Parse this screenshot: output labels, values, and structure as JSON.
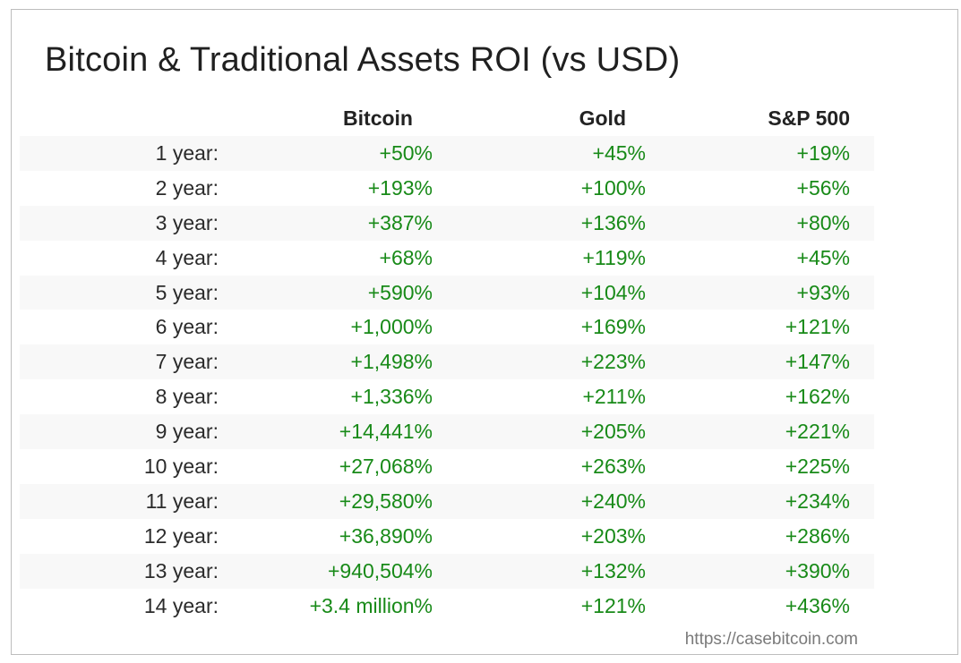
{
  "title": "Bitcoin & Traditional Assets ROI (vs USD)",
  "columns": [
    "Bitcoin",
    "Gold",
    "S&P 500"
  ],
  "rows": [
    {
      "period": "1 year:",
      "bitcoin": "+50%",
      "gold": "+45%",
      "sp500": "+19%"
    },
    {
      "period": "2 year:",
      "bitcoin": "+193%",
      "gold": "+100%",
      "sp500": "+56%"
    },
    {
      "period": "3 year:",
      "bitcoin": "+387%",
      "gold": "+136%",
      "sp500": "+80%"
    },
    {
      "period": "4 year:",
      "bitcoin": "+68%",
      "gold": "+119%",
      "sp500": "+45%"
    },
    {
      "period": "5 year:",
      "bitcoin": "+590%",
      "gold": "+104%",
      "sp500": "+93%"
    },
    {
      "period": "6 year:",
      "bitcoin": "+1,000%",
      "gold": "+169%",
      "sp500": "+121%"
    },
    {
      "period": "7 year:",
      "bitcoin": "+1,498%",
      "gold": "+223%",
      "sp500": "+147%"
    },
    {
      "period": "8 year:",
      "bitcoin": "+1,336%",
      "gold": "+211%",
      "sp500": "+162%"
    },
    {
      "period": "9 year:",
      "bitcoin": "+14,441%",
      "gold": "+205%",
      "sp500": "+221%"
    },
    {
      "period": "10 year:",
      "bitcoin": "+27,068%",
      "gold": "+263%",
      "sp500": "+225%"
    },
    {
      "period": "11 year:",
      "bitcoin": "+29,580%",
      "gold": "+240%",
      "sp500": "+234%"
    },
    {
      "period": "12 year:",
      "bitcoin": "+36,890%",
      "gold": "+203%",
      "sp500": "+286%"
    },
    {
      "period": "13 year:",
      "bitcoin": "+940,504%",
      "gold": "+132%",
      "sp500": "+390%"
    },
    {
      "period": "14 year:",
      "bitcoin": "+3.4 million%",
      "gold": "+121%",
      "sp500": "+436%"
    }
  ],
  "source": "https://casebitcoin.com",
  "colors": {
    "positive_value": "#188a18",
    "title_text": "#202020",
    "stripe_background": "#f8f8f8",
    "frame_border": "#bdbdbd",
    "source_text": "#7a7a7a"
  }
}
